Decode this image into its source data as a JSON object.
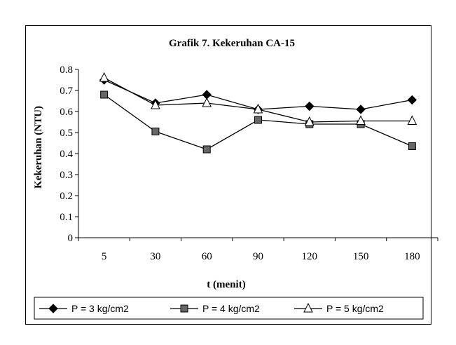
{
  "chart_data": {
    "type": "line",
    "title": "Grafik 7. Kekeruhan CA-15",
    "xlabel": "t (menit)",
    "ylabel": "Kekeruhan (NTU)",
    "categories": [
      "5",
      "30",
      "60",
      "90",
      "120",
      "150",
      "180"
    ],
    "ylim": [
      0,
      0.8
    ],
    "yticks": [
      "0",
      "0.1",
      "0.2",
      "0.3",
      "0.4",
      "0.5",
      "0.6",
      "0.7",
      "0.8"
    ],
    "grid": false,
    "legend_position": "bottom",
    "series": [
      {
        "name": "P = 3 kg/cm2",
        "marker": "diamond",
        "color": "#000000",
        "values": [
          0.75,
          0.64,
          0.68,
          0.61,
          0.625,
          0.61,
          0.655
        ]
      },
      {
        "name": "P = 4 kg/cm2",
        "marker": "square",
        "color": "#000000",
        "values": [
          0.68,
          0.505,
          0.42,
          0.56,
          0.54,
          0.54,
          0.435
        ]
      },
      {
        "name": "P = 5 kg/cm2",
        "marker": "triangle",
        "color": "#000000",
        "values": [
          0.76,
          0.63,
          0.64,
          0.61,
          0.55,
          0.555,
          0.555
        ]
      }
    ]
  }
}
